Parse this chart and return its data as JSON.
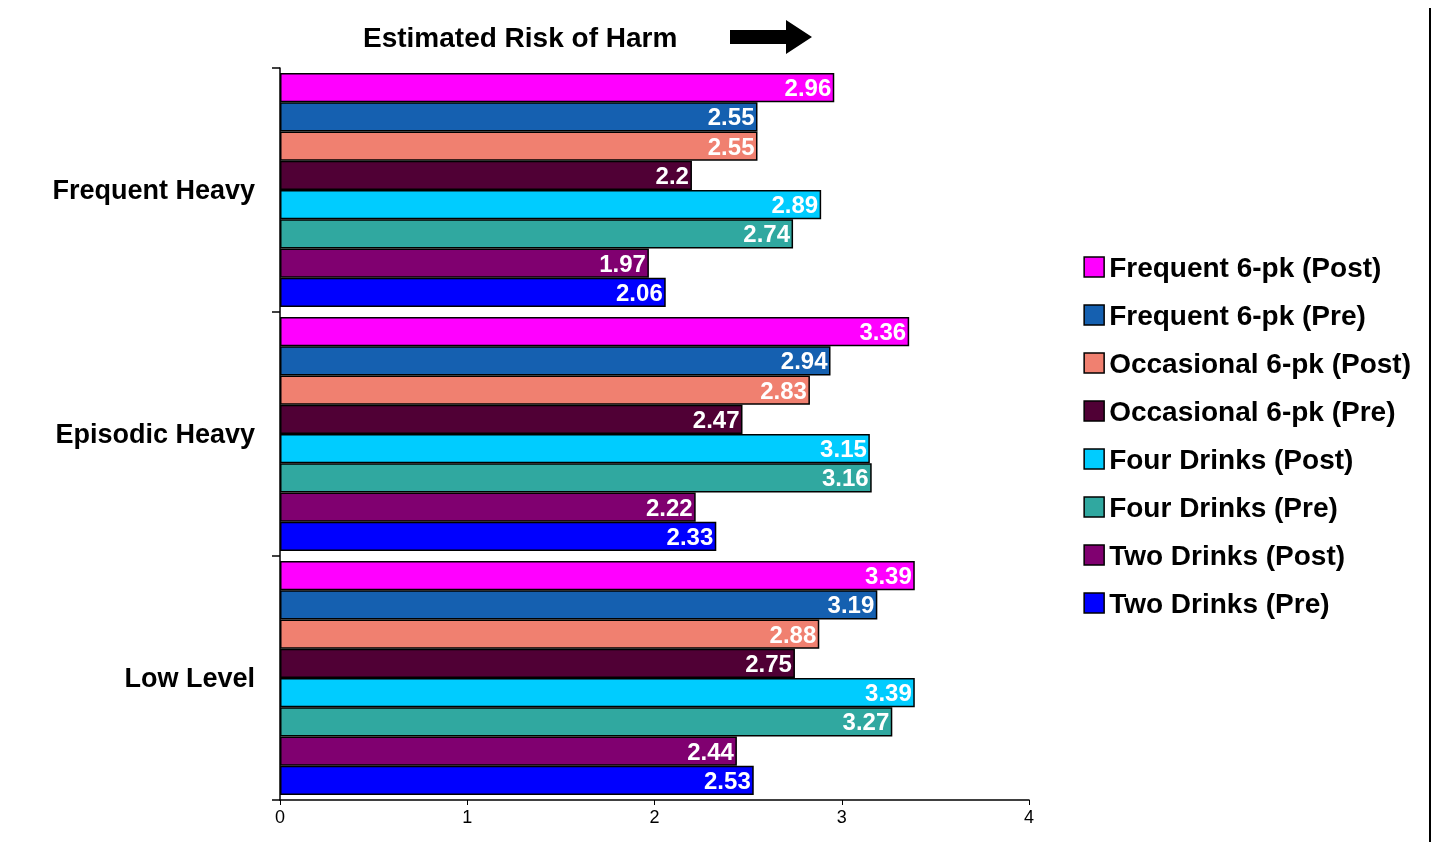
{
  "chart_data": {
    "type": "bar",
    "orientation": "horizontal",
    "title": "Estimated Risk of Harm",
    "categories": [
      "Frequent Heavy",
      "Episodic Heavy",
      "Low Level"
    ],
    "series": [
      {
        "name": "Frequent 6-pk (Post)",
        "color": "#ff00ff",
        "values": [
          2.96,
          3.36,
          3.39
        ]
      },
      {
        "name": "Frequent 6-pk (Pre)",
        "color": "#1560b0",
        "values": [
          2.55,
          2.94,
          3.19
        ]
      },
      {
        "name": "Occasional 6-pk (Post)",
        "color": "#f08070",
        "values": [
          2.55,
          2.83,
          2.88
        ]
      },
      {
        "name": "Occasional 6-pk (Pre)",
        "color": "#500035",
        "values": [
          2.2,
          2.47,
          2.75
        ]
      },
      {
        "name": "Four Drinks (Post)",
        "color": "#00ccff",
        "values": [
          2.89,
          3.15,
          3.39
        ]
      },
      {
        "name": "Four Drinks (Pre)",
        "color": "#30a8a0",
        "values": [
          2.74,
          3.16,
          3.27
        ]
      },
      {
        "name": "Two Drinks (Post)",
        "color": "#800070",
        "values": [
          1.97,
          2.22,
          2.44
        ]
      },
      {
        "name": "Two Drinks (Pre)",
        "color": "#0000ff",
        "values": [
          2.06,
          2.33,
          2.53
        ]
      }
    ],
    "xlim": [
      0,
      4
    ],
    "xticks": [
      0,
      1,
      2,
      3,
      4
    ],
    "grid": false,
    "legend": "right",
    "data_labels": true
  }
}
